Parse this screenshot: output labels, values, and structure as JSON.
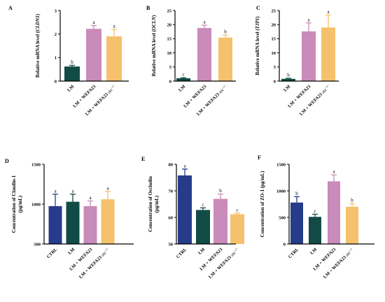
{
  "colors": {
    "navy": "#263b8a",
    "teal": "#124b45",
    "mauve": "#c98bb9",
    "apricot": "#f5c16c",
    "axis": "#000000"
  },
  "chart_data": [
    {
      "id": "A",
      "panel": "A",
      "type": "bar",
      "ylabel_prefix": "Relative mRNA level (",
      "ylabel_gene": "CLDN1",
      "ylabel_suffix": ")",
      "ylim": [
        0,
        3
      ],
      "yticks": [
        0,
        1,
        2,
        3
      ],
      "categories": [
        "LM",
        "LM + WEFA23",
        "LM + WEFA23 atc−/−"
      ],
      "values": [
        0.62,
        2.22,
        1.9
      ],
      "errors": [
        0.05,
        0.14,
        0.3
      ],
      "colors": [
        "teal",
        "mauve",
        "apricot"
      ],
      "letters": [
        "b",
        "a",
        "a"
      ]
    },
    {
      "id": "B",
      "panel": "B",
      "type": "bar",
      "ylabel_prefix": "Relative mRNA level (",
      "ylabel_gene": "OCLN",
      "ylabel_suffix": ")",
      "ylim": [
        0,
        25
      ],
      "yticks": [
        0,
        5,
        10,
        15,
        20,
        25
      ],
      "categories": [
        "LM",
        "LM + WEFA23",
        "LM + WEFA23 atc−/−"
      ],
      "values": [
        1.0,
        18.8,
        15.4
      ],
      "errors": [
        0.2,
        1.0,
        0.9
      ],
      "colors": [
        "teal",
        "mauve",
        "apricot"
      ],
      "letters": [
        "c",
        "a",
        "b"
      ]
    },
    {
      "id": "C",
      "panel": "C",
      "type": "bar",
      "ylabel_prefix": "Relative mRNA level (",
      "ylabel_gene": "TJP1",
      "ylabel_suffix": ")",
      "ylim": [
        0,
        25
      ],
      "yticks": [
        0,
        5,
        10,
        15,
        20,
        25
      ],
      "categories": [
        "LM",
        "LM + WEFA23",
        "LM + WEFA23 atc−/−"
      ],
      "values": [
        0.8,
        17.6,
        19.0
      ],
      "errors": [
        0.2,
        3.0,
        4.4
      ],
      "colors": [
        "teal",
        "mauve",
        "apricot"
      ],
      "letters": [
        "b",
        "a",
        "a"
      ]
    },
    {
      "id": "D",
      "panel": "D",
      "type": "bar",
      "ylabel_line1": "Concentration of Claudin-1",
      "ylabel_line2": "(pg/mL)",
      "ylim": [
        500,
        1500
      ],
      "yticks": [
        500,
        1000,
        1500
      ],
      "categories": [
        "CTRL",
        "LM",
        "LM + WEFA23",
        "LM + WEFA23 atc−/−"
      ],
      "values": [
        975,
        1030,
        975,
        1060
      ],
      "errors": [
        150,
        95,
        65,
        100
      ],
      "colors": [
        "navy",
        "teal",
        "mauve",
        "apricot"
      ],
      "letters": [
        "a",
        "a",
        "a",
        "a"
      ]
    },
    {
      "id": "E",
      "panel": "E",
      "type": "bar",
      "ylabel_line1": "Concentration of Occludin",
      "ylabel_line2": "(pg/mL)",
      "ylim": [
        50,
        80
      ],
      "yticks": [
        50,
        60,
        70,
        80
      ],
      "categories": [
        "CTRL",
        "LM",
        "LM + WEFA23",
        "LM + WEFA23 atc−/−"
      ],
      "values": [
        75.8,
        62.8,
        67.0,
        61.2
      ],
      "errors": [
        2.4,
        0.8,
        1.8,
        0.4
      ],
      "colors": [
        "navy",
        "teal",
        "mauve",
        "apricot"
      ],
      "letters": [
        "a",
        "c",
        "b",
        "c"
      ]
    },
    {
      "id": "F",
      "panel": "F",
      "type": "bar",
      "ylabel_line1": "Concentration of  ZO-1 (pg/mL)",
      "ylim": [
        0,
        1500
      ],
      "yticks": [
        0,
        500,
        1000,
        1500
      ],
      "categories": [
        "CTRL",
        "LM",
        "LM + WEFA23",
        "LM + WEFA23 atc−/−"
      ],
      "values": [
        780,
        510,
        1180,
        700
      ],
      "errors": [
        110,
        50,
        120,
        60
      ],
      "colors": [
        "navy",
        "teal",
        "mauve",
        "apricot"
      ],
      "letters": [
        "b",
        "c",
        "a",
        "b"
      ]
    }
  ]
}
